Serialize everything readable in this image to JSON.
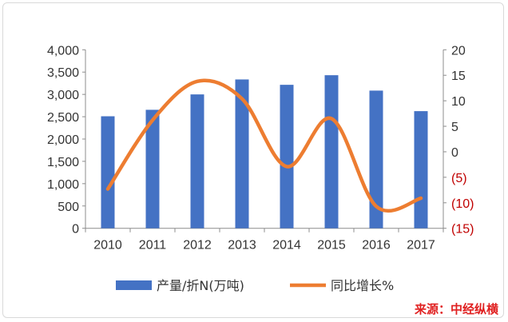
{
  "chart_data": {
    "type": "bar+line",
    "categories": [
      "2010",
      "2011",
      "2012",
      "2013",
      "2014",
      "2015",
      "2016",
      "2017"
    ],
    "series": [
      {
        "name": "产量/折N(万吨)",
        "type": "bar",
        "axis": "left",
        "color": "#4472c4",
        "values": [
          2510,
          2655,
          3000,
          3335,
          3215,
          3430,
          3085,
          2625
        ]
      },
      {
        "name": "同比增长%",
        "type": "line",
        "axis": "right",
        "color": "#ed7d31",
        "smooth": true,
        "values": [
          -7.3,
          6.2,
          13.8,
          10.4,
          -2.9,
          6.5,
          -10.7,
          -9.1
        ]
      }
    ],
    "left_axis": {
      "range": [
        0,
        4000
      ],
      "ticks": [
        "0",
        "500",
        "1,000",
        "1,500",
        "2,000",
        "2,500",
        "3,000",
        "3,500",
        "4,000"
      ]
    },
    "right_axis": {
      "range": [
        -15,
        20
      ],
      "ticks": [
        "(15)",
        "(10)",
        "(5)",
        "0",
        "5",
        "10",
        "15",
        "20"
      ],
      "negative_color": "#c00000"
    },
    "legend": "bottom",
    "grid": false
  },
  "source": "来源：中经纵横"
}
